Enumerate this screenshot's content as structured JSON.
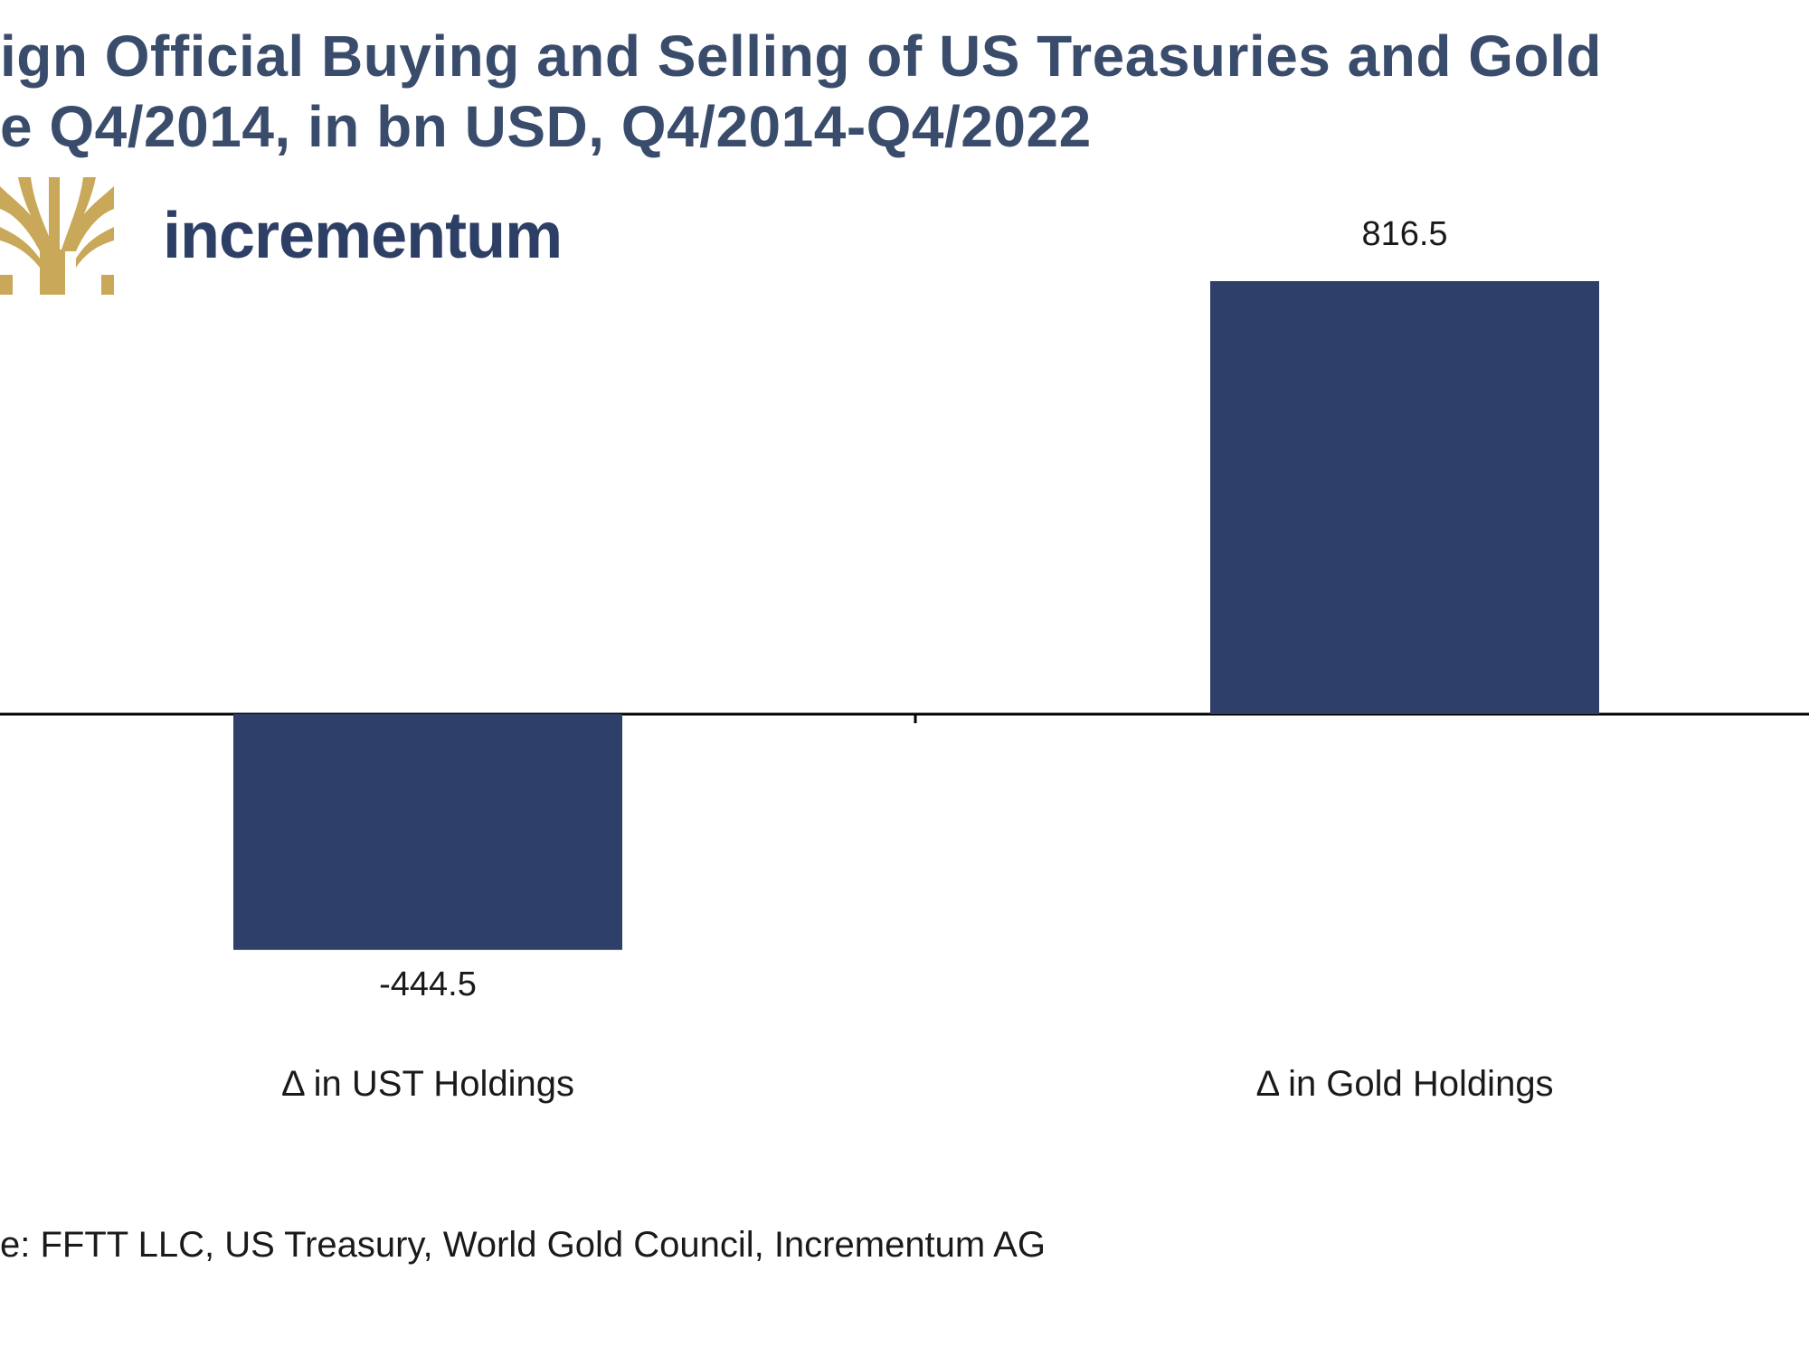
{
  "title_lines": [
    "ign Official Buying and Selling of US Treasuries and Gold",
    "e Q4/2014, in bn USD, Q4/2014-Q4/2022"
  ],
  "brand": {
    "name": "incrementum",
    "logo_icon": "tree-logo-icon",
    "logo_color": "#c9a85a"
  },
  "source": "e: FFTT LLC, US Treasury, World Gold Council, Incrementum AG",
  "colors": {
    "bar": "#2e4069",
    "axis": "#000000",
    "title": "#3a4c6b"
  },
  "chart_data": {
    "type": "bar",
    "categories": [
      "Δ in UST Holdings",
      "Δ in Gold Holdings"
    ],
    "values": [
      -444.5,
      816.5
    ],
    "data_labels": [
      "-444.5",
      "816.5"
    ],
    "ylim": [
      -1100,
      900
    ],
    "grid": false,
    "legend": "none",
    "xlabel": "",
    "ylabel": ""
  }
}
